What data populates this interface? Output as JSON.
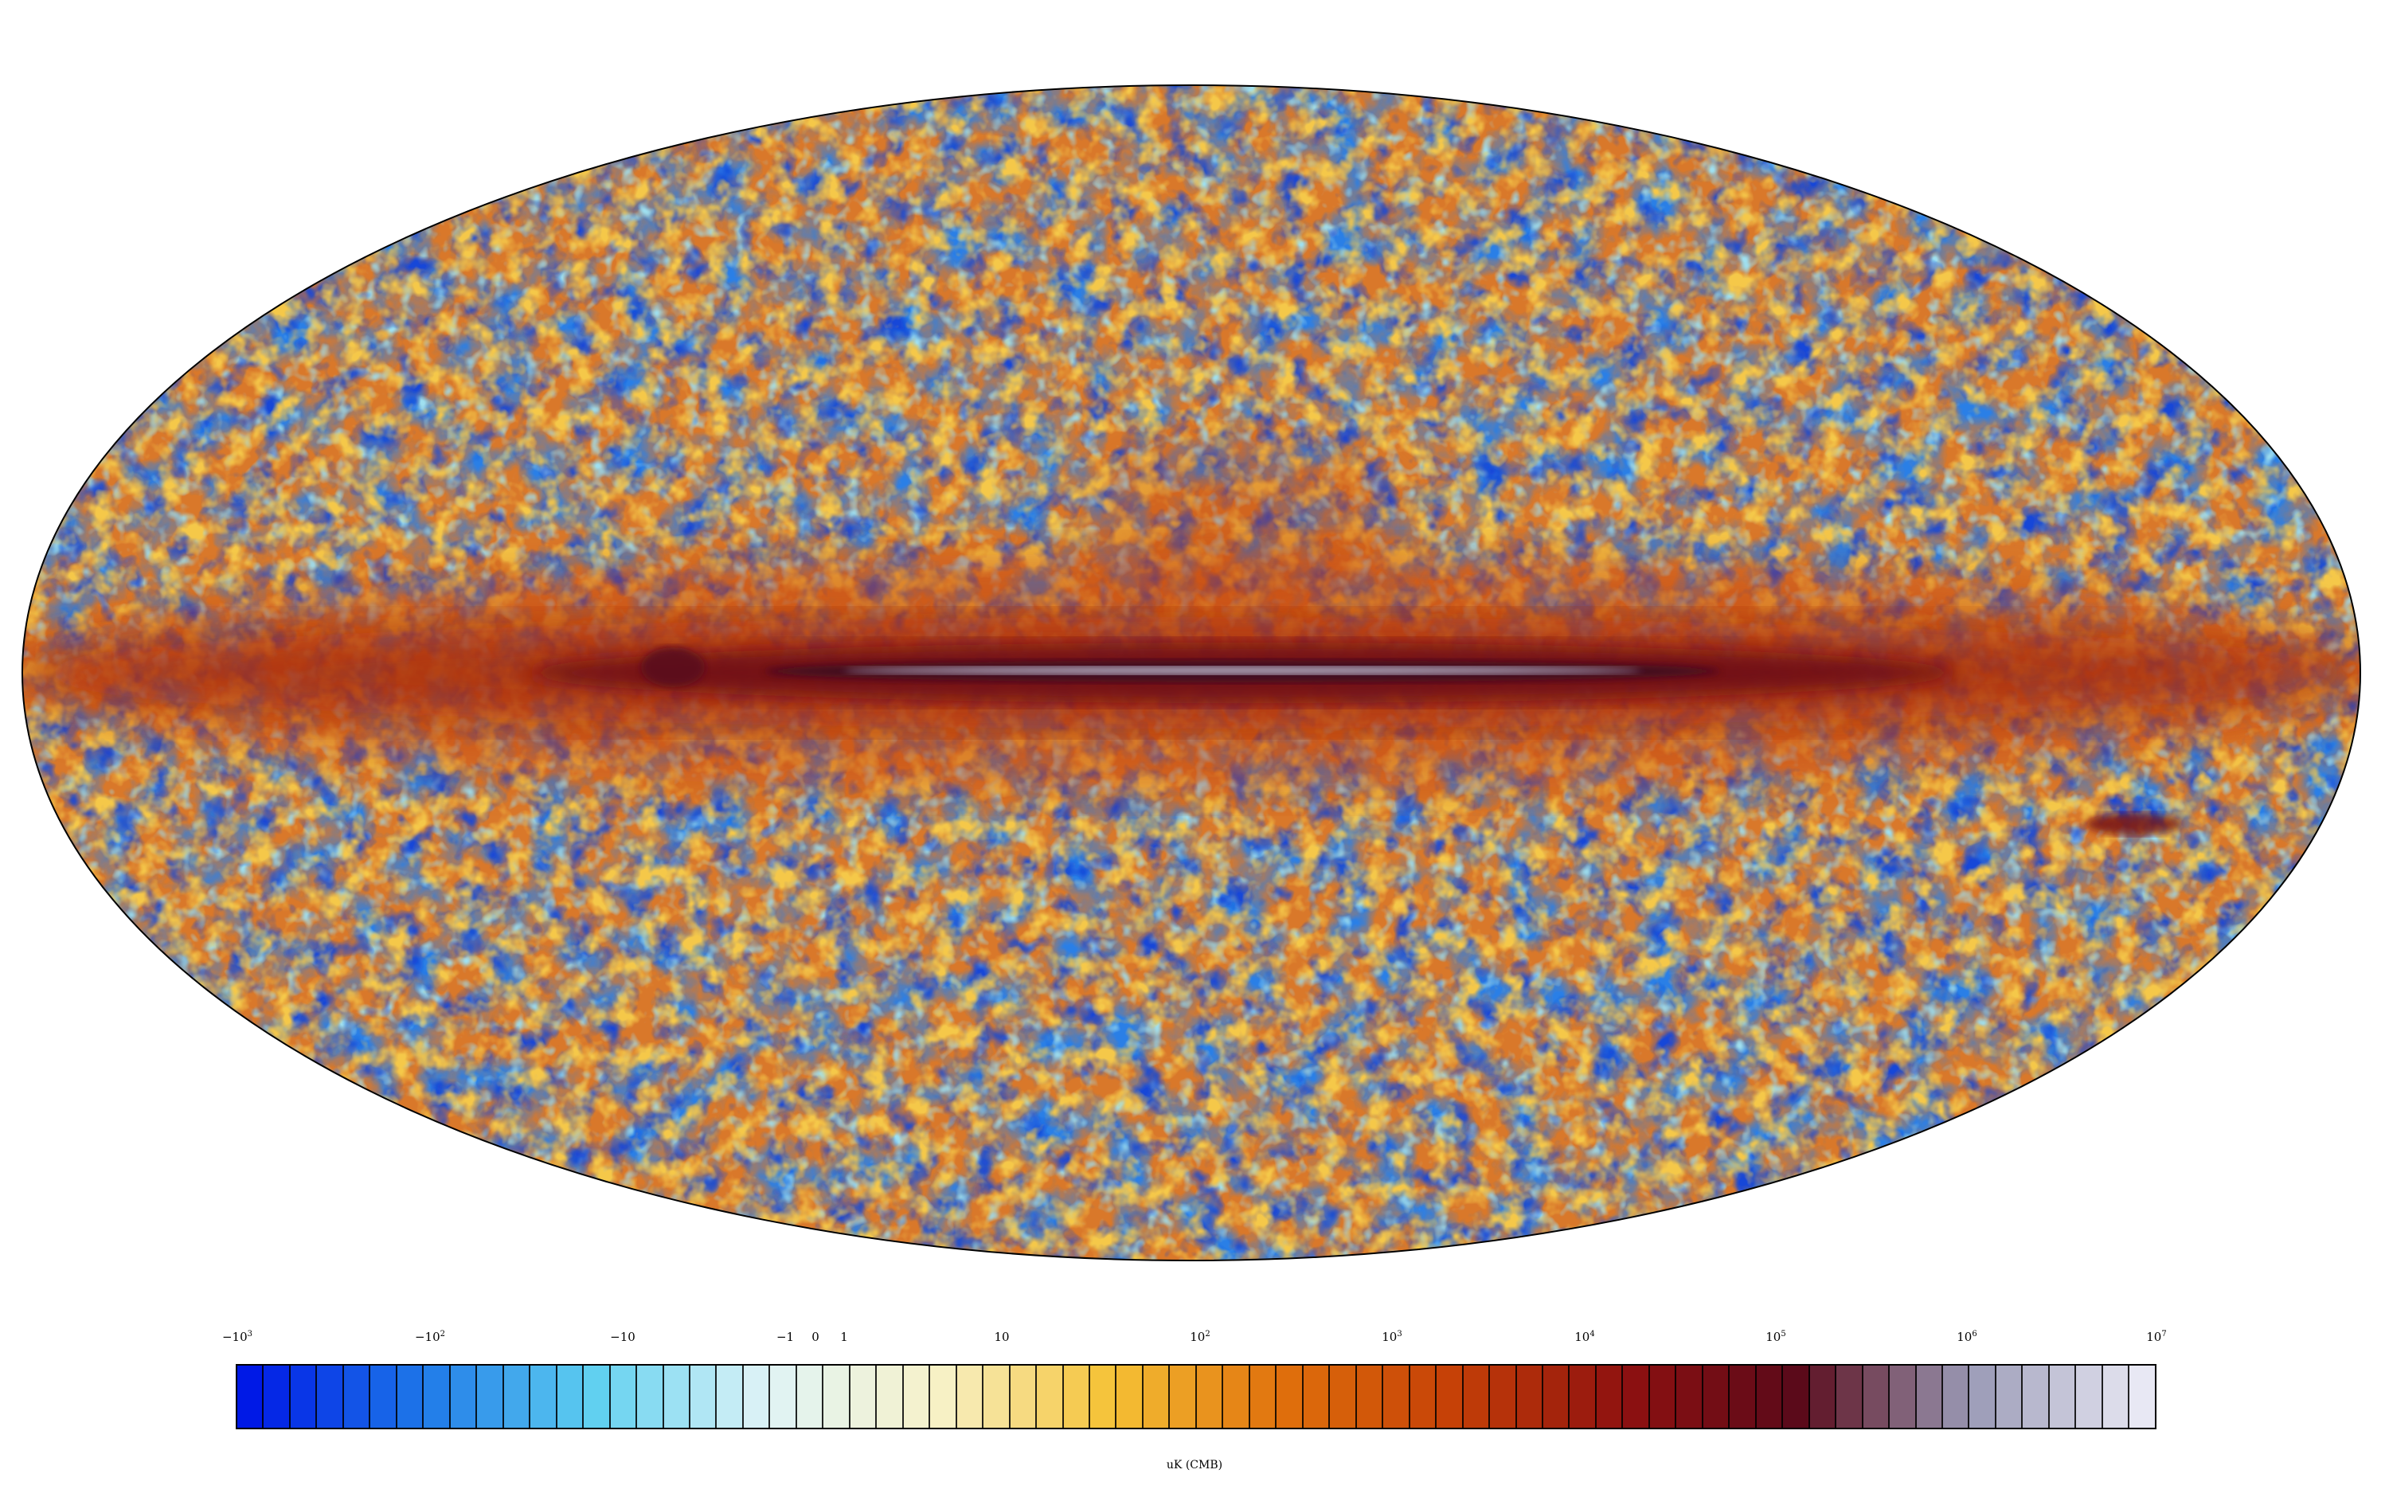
{
  "map": {
    "projection": "Mollweide full-sky",
    "palette": [
      "#0019e6",
      "#1e78e8",
      "#5fd0f0",
      "#dff3f6",
      "#f7f2c9",
      "#f5c236",
      "#e0700c",
      "#c54007",
      "#8e1010",
      "#5a0a1a",
      "#9a9ab6",
      "#e8e8f4"
    ]
  },
  "colorbar": {
    "ticks": [
      {
        "base": "−10",
        "exp": "3"
      },
      {
        "base": "−10",
        "exp": "2"
      },
      {
        "base": "−10",
        "exp": ""
      },
      {
        "base": "−1",
        "exp": ""
      },
      {
        "base": "0",
        "exp": ""
      },
      {
        "base": "1",
        "exp": ""
      },
      {
        "base": "10",
        "exp": ""
      },
      {
        "base": "10",
        "exp": "2"
      },
      {
        "base": "10",
        "exp": "3"
      },
      {
        "base": "10",
        "exp": "4"
      },
      {
        "base": "10",
        "exp": "5"
      },
      {
        "base": "10",
        "exp": "6"
      },
      {
        "base": "10",
        "exp": "7"
      }
    ],
    "unit": "uK (CMB)"
  }
}
